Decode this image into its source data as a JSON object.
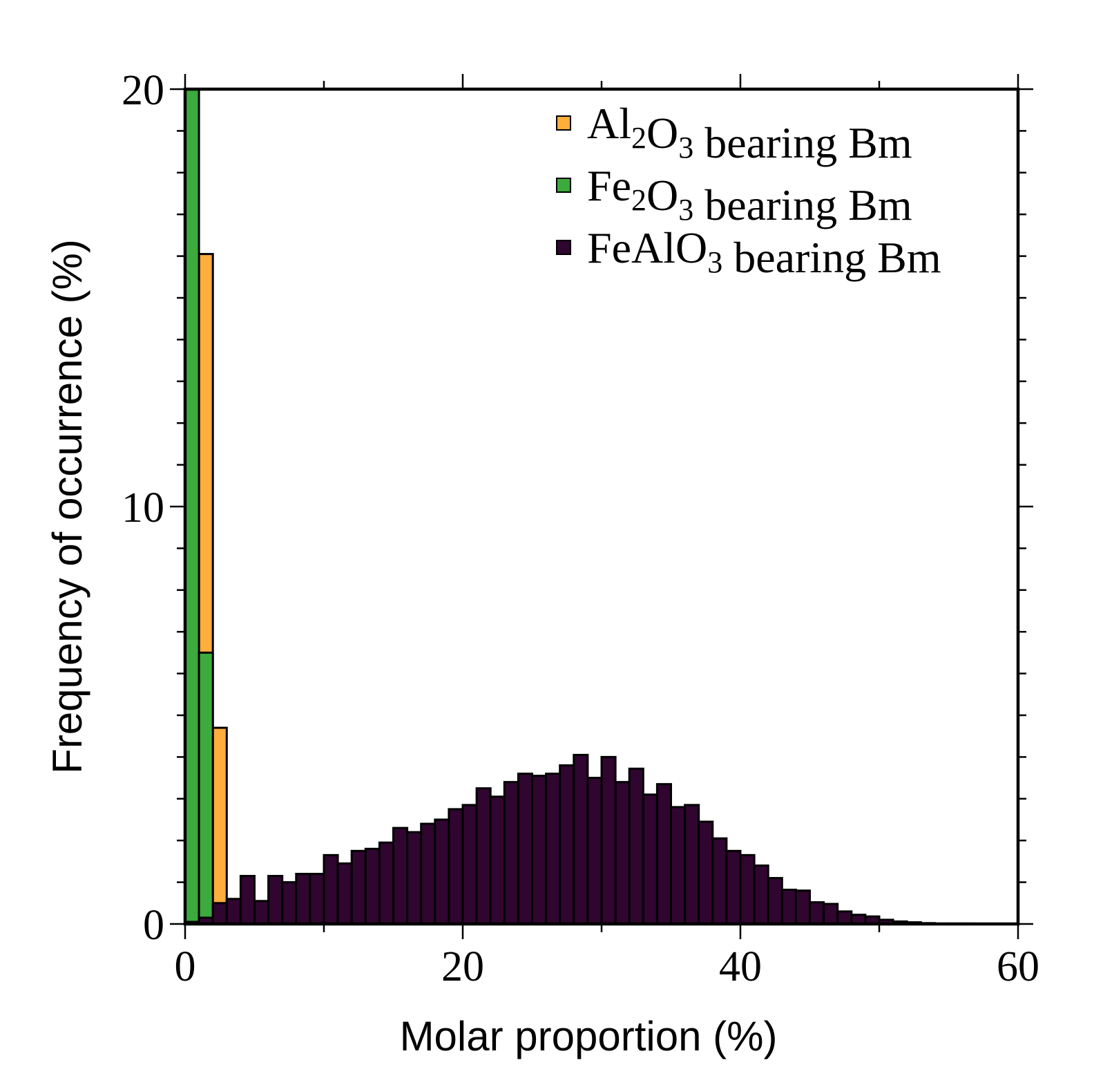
{
  "chart_data": {
    "type": "bar",
    "subtype": "overlapping-histogram",
    "bin_width": 1,
    "xlim": [
      0,
      60
    ],
    "ylim": [
      0,
      20
    ],
    "xticks": [
      0,
      20,
      40,
      60
    ],
    "yticks": [
      0,
      10,
      20
    ],
    "xlabel": "Molar proportion (%)",
    "ylabel": "Frequency of occurrence (%)",
    "grid": false,
    "legend_position": "top-right",
    "series": [
      {
        "name": "Al2O3 bearing Bm",
        "legend_parts": [
          {
            "text": "Al",
            "sub": false
          },
          {
            "text": "2",
            "sub": true
          },
          {
            "text": "O",
            "sub": false
          },
          {
            "text": "3",
            "sub": true
          },
          {
            "text": " bearing Bm",
            "sub": false
          }
        ],
        "color": "#ffad3b",
        "x": [
          0,
          1,
          2,
          3
        ],
        "values": [
          0.0,
          16.05,
          4.7,
          0.55
        ]
      },
      {
        "name": "Fe2O3 bearing Bm",
        "legend_parts": [
          {
            "text": "Fe",
            "sub": false
          },
          {
            "text": "2",
            "sub": true
          },
          {
            "text": "O",
            "sub": false
          },
          {
            "text": "3",
            "sub": true
          },
          {
            "text": " bearing Bm",
            "sub": false
          }
        ],
        "color": "#3caa3c",
        "x": [
          0,
          1,
          2
        ],
        "values": [
          20.0,
          6.5,
          0.0
        ]
      },
      {
        "name": "FeAlO3 bearing Bm",
        "legend_parts": [
          {
            "text": "FeAlO",
            "sub": false
          },
          {
            "text": "3",
            "sub": true
          },
          {
            "text": " bearing Bm",
            "sub": false
          }
        ],
        "color": "#300530",
        "x": [
          0,
          1,
          2,
          3,
          4,
          5,
          6,
          7,
          8,
          9,
          10,
          11,
          12,
          13,
          14,
          15,
          16,
          17,
          18,
          19,
          20,
          21,
          22,
          23,
          24,
          25,
          26,
          27,
          28,
          29,
          30,
          31,
          32,
          33,
          34,
          35,
          36,
          37,
          38,
          39,
          40,
          41,
          42,
          43,
          44,
          45,
          46,
          47,
          48,
          49,
          50,
          51,
          52,
          53,
          54,
          55,
          56,
          57,
          58,
          59
        ],
        "values": [
          0.05,
          0.15,
          0.5,
          0.6,
          1.15,
          0.55,
          1.15,
          1.0,
          1.2,
          1.2,
          1.65,
          1.45,
          1.75,
          1.8,
          1.95,
          2.3,
          2.2,
          2.4,
          2.5,
          2.75,
          2.85,
          3.25,
          3.05,
          3.4,
          3.6,
          3.55,
          3.6,
          3.8,
          4.05,
          3.5,
          4.0,
          3.4,
          3.72,
          3.1,
          3.35,
          2.8,
          2.85,
          2.45,
          2.05,
          1.75,
          1.65,
          1.4,
          1.1,
          0.82,
          0.8,
          0.52,
          0.48,
          0.3,
          0.22,
          0.18,
          0.1,
          0.06,
          0.04,
          0.02,
          0.01,
          0.01,
          0.01,
          0.0,
          0.0,
          0.0
        ]
      }
    ]
  }
}
